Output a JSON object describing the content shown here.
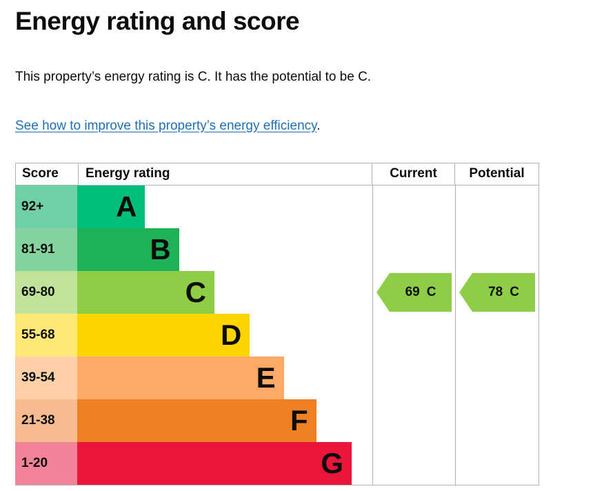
{
  "page": {
    "title": "Energy rating and score",
    "intro": "This property’s energy rating is C. It has the potential to be C.",
    "link_text": "See how to improve this property’s energy efficiency",
    "link_suffix": ".",
    "link_color": "#1d70b8"
  },
  "chart_data": {
    "type": "bar",
    "title": "Energy rating and score",
    "table_headers": {
      "score": "Score",
      "rating": "Energy rating",
      "current": "Current",
      "potential": "Potential"
    },
    "categories": [
      "A",
      "B",
      "C",
      "D",
      "E",
      "F",
      "G"
    ],
    "score_ranges": [
      "92+",
      "81-91",
      "69-80",
      "55-68",
      "39-54",
      "21-38",
      "1-20"
    ],
    "bands": [
      {
        "score": "92+",
        "letter": "A",
        "color": "#00bd7a",
        "tint": "#6fcfa5",
        "width_pct": 23
      },
      {
        "score": "81-91",
        "letter": "B",
        "color": "#1cb255",
        "tint": "#85d49f",
        "width_pct": 34.5
      },
      {
        "score": "69-80",
        "letter": "C",
        "color": "#8dce46",
        "tint": "#c0e299",
        "width_pct": 46.5
      },
      {
        "score": "55-68",
        "letter": "D",
        "color": "#ffd500",
        "tint": "#ffe878",
        "width_pct": 58.5
      },
      {
        "score": "39-54",
        "letter": "E",
        "color": "#fcaa65",
        "tint": "#fdd0a7",
        "width_pct": 70
      },
      {
        "score": "21-38",
        "letter": "F",
        "color": "#ef8023",
        "tint": "#f6bc8f",
        "width_pct": 81
      },
      {
        "score": "1-20",
        "letter": "G",
        "color": "#e9153b",
        "tint": "#f3839a",
        "width_pct": 93
      }
    ],
    "current": {
      "value": "69",
      "band": "C",
      "color": "#8dce46"
    },
    "potential": {
      "value": "78",
      "band": "C",
      "color": "#8dce46"
    }
  }
}
